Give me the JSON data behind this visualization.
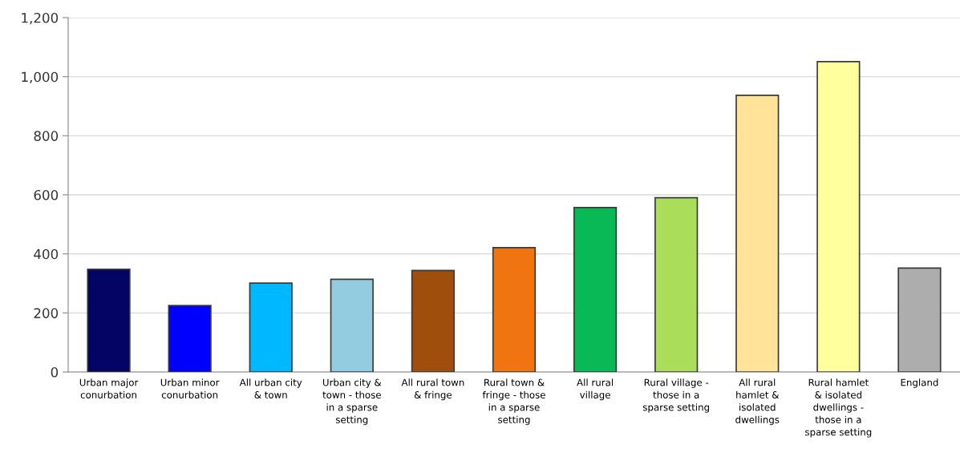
{
  "chart_data": {
    "type": "bar",
    "categories": [
      "Urban major\nconurbation",
      "Urban minor\nconurbation",
      "All urban city\n& town",
      "Urban city &\ntown - those\nin a sparse\nsetting",
      "All rural town\n& fringe",
      "Rural town &\nfringe - those\nin a sparse\nsetting",
      "All rural\nvillage",
      "Rural village -\nthose in a\nsparse setting",
      "All rural\nhamlet &\nisolated\ndwellings",
      "Rural hamlet\n& isolated\ndwellings -\nthose in a\nsparse setting",
      "England"
    ],
    "values": [
      348,
      225,
      301,
      314,
      344,
      421,
      557,
      590,
      937,
      1051,
      352
    ],
    "colors": [
      "#040464",
      "#0000ff",
      "#00b8ff",
      "#93cce0",
      "#a04e0c",
      "#f07510",
      "#08b955",
      "#aade5a",
      "#ffe399",
      "#ffff9e",
      "#adadad"
    ],
    "ylim": [
      0,
      1200
    ],
    "yticks": [
      0,
      200,
      400,
      600,
      800,
      {
        "value": 1000,
        "label": "1,000"
      },
      {
        "value": 1200,
        "label": "1,200"
      }
    ],
    "grid": "y"
  }
}
